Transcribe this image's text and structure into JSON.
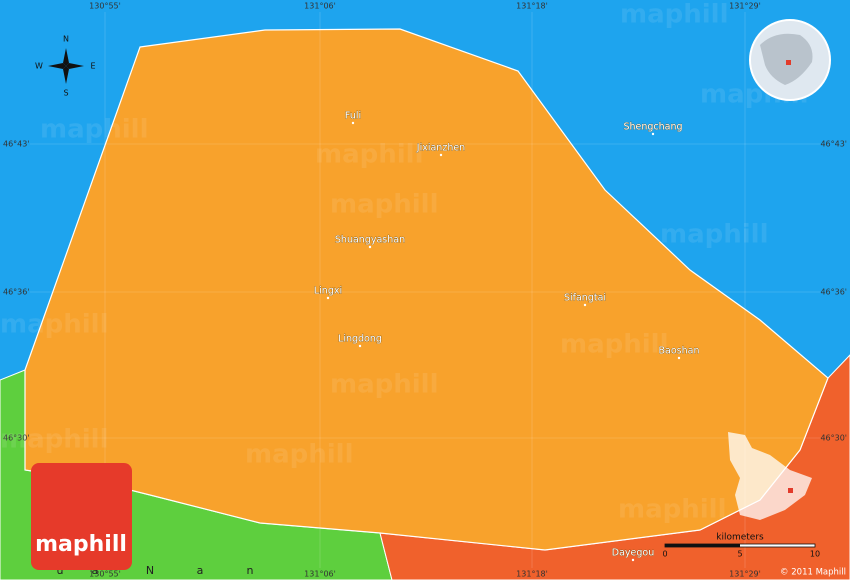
{
  "coordinates": {
    "longitudes": [
      "130°55'",
      "131°06'",
      "131°18'",
      "131°29'"
    ],
    "latitudes": [
      "46°43'",
      "46°36'",
      "46°30'"
    ]
  },
  "compass": {
    "north": "N",
    "south": "S",
    "east": "E",
    "west": "W"
  },
  "places": [
    "Fuli",
    "Jixianzhen",
    "Shengchang",
    "Shuangyashan",
    "Lingxi",
    "Sifangtai",
    "Lingdong",
    "Baoshan",
    "Dayegou"
  ],
  "region_letters": [
    "u",
    "a",
    "N",
    "a",
    "n"
  ],
  "watermark": "maphill",
  "logo": "maphill",
  "scale": {
    "unit": "kilometers",
    "ticks": [
      "0",
      "5",
      "10"
    ]
  },
  "copyright": "© 2011 Maphill"
}
